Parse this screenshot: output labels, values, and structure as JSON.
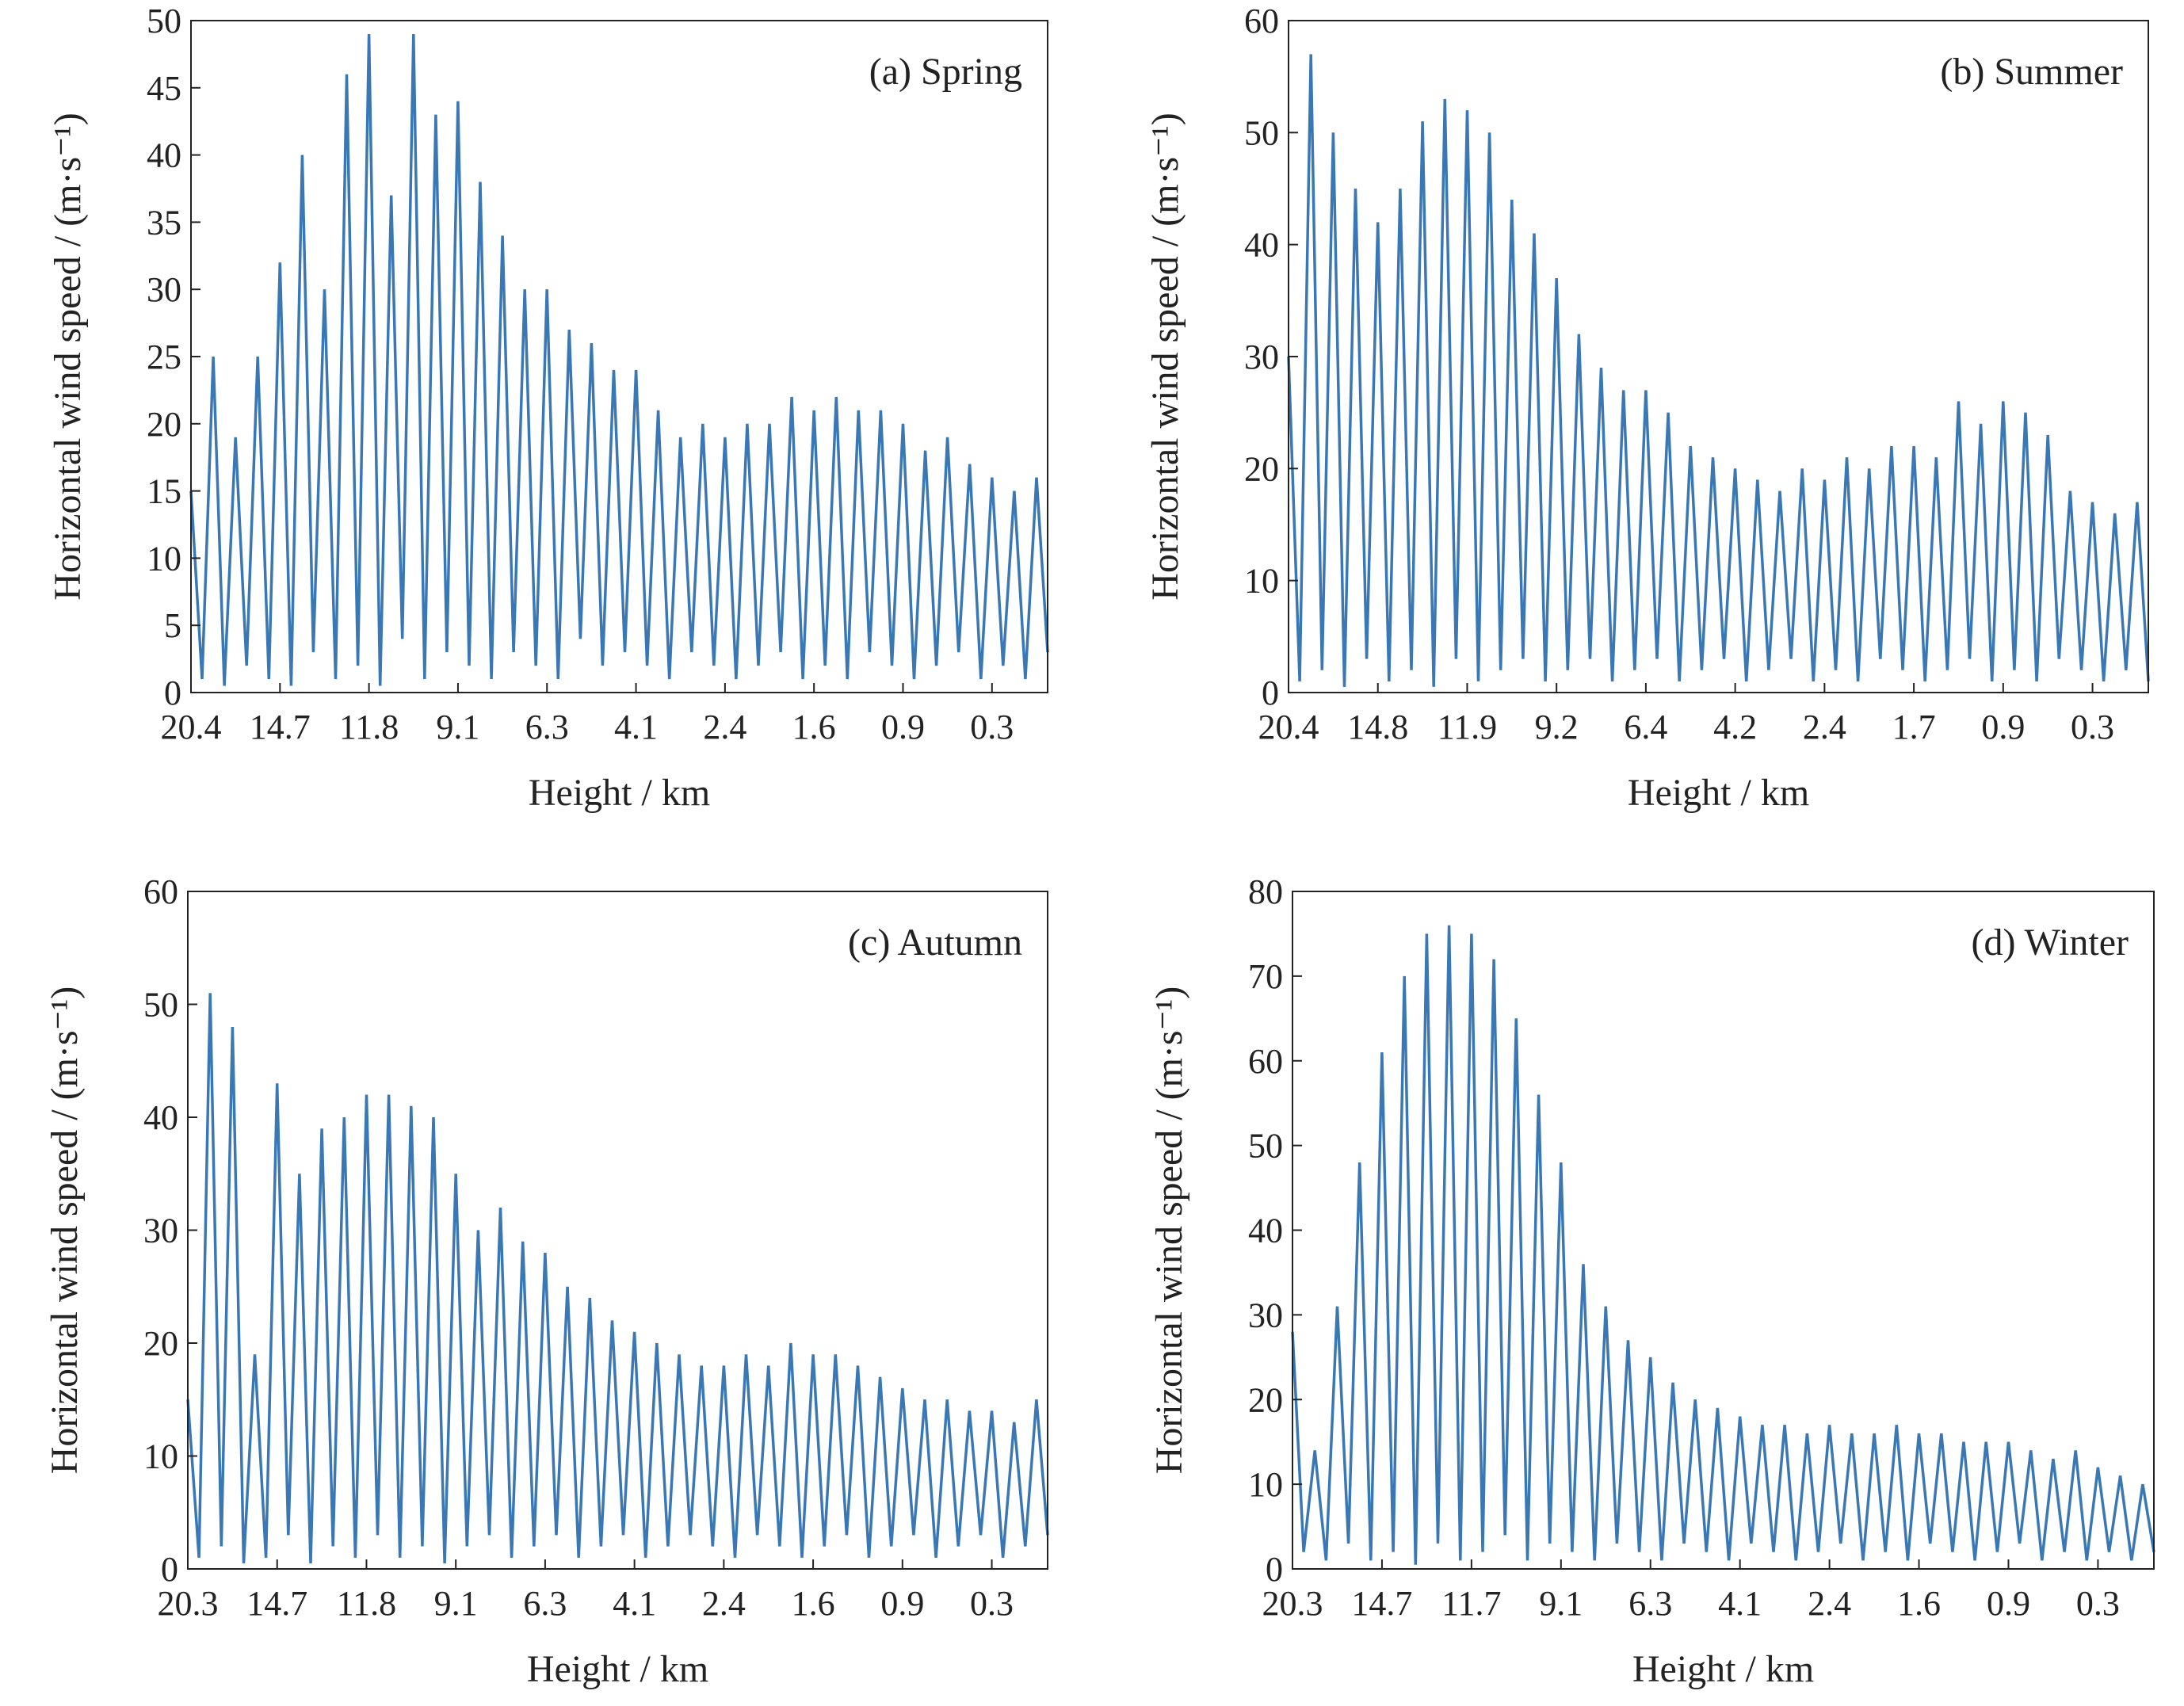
{
  "chart_data": [
    {
      "type": "line",
      "title": "(a) Spring",
      "xlabel": "Height / km",
      "ylabel": "Horizontal wind speed / (m·s⁻¹)",
      "categories": [
        "20.4",
        null,
        null,
        null,
        null,
        null,
        null,
        null,
        "14.7",
        null,
        null,
        null,
        null,
        null,
        null,
        null,
        "11.8",
        null,
        null,
        null,
        null,
        null,
        null,
        null,
        "9.1",
        null,
        null,
        null,
        null,
        null,
        null,
        null,
        "6.3",
        null,
        null,
        null,
        null,
        null,
        null,
        null,
        "4.1",
        null,
        null,
        null,
        null,
        null,
        null,
        null,
        "2.4",
        null,
        null,
        null,
        null,
        null,
        null,
        null,
        "1.6",
        null,
        null,
        null,
        null,
        null,
        null,
        null,
        "0.9",
        null,
        null,
        null,
        null,
        null,
        null,
        null,
        "0.3",
        null,
        null,
        null,
        null,
        null
      ],
      "series": [
        {
          "color": "#3a78b5",
          "values": [
            15,
            1,
            25,
            0.5,
            19,
            2,
            25,
            1,
            32,
            0.5,
            40,
            3,
            30,
            1,
            46,
            2,
            49,
            0.5,
            37,
            4,
            49,
            1,
            43,
            3,
            44,
            2,
            38,
            1,
            34,
            3,
            30,
            2,
            30,
            1,
            27,
            4,
            26,
            2,
            24,
            3,
            24,
            2,
            21,
            1,
            19,
            3,
            20,
            2,
            19,
            1,
            20,
            2,
            20,
            3,
            22,
            1,
            21,
            2,
            22,
            1,
            21,
            3,
            21,
            2,
            20,
            1,
            18,
            2,
            19,
            3,
            17,
            1,
            16,
            2,
            15,
            1,
            16,
            3
          ]
        }
      ],
      "ylim": [
        0,
        50
      ],
      "yticks": [
        0,
        5,
        10,
        15,
        20,
        25,
        30,
        35,
        40,
        45,
        50
      ]
    },
    {
      "type": "line",
      "title": "(b) Summer",
      "xlabel": "Height / km",
      "ylabel": "Horizontal wind speed / (m·s⁻¹)",
      "categories": [
        "20.4",
        null,
        null,
        null,
        null,
        null,
        null,
        null,
        "14.8",
        null,
        null,
        null,
        null,
        null,
        null,
        null,
        "11.9",
        null,
        null,
        null,
        null,
        null,
        null,
        null,
        "9.2",
        null,
        null,
        null,
        null,
        null,
        null,
        null,
        "6.4",
        null,
        null,
        null,
        null,
        null,
        null,
        null,
        "4.2",
        null,
        null,
        null,
        null,
        null,
        null,
        null,
        "2.4",
        null,
        null,
        null,
        null,
        null,
        null,
        null,
        "1.7",
        null,
        null,
        null,
        null,
        null,
        null,
        null,
        "0.9",
        null,
        null,
        null,
        null,
        null,
        null,
        null,
        "0.3",
        null,
        null,
        null,
        null,
        null
      ],
      "series": [
        {
          "color": "#3a78b5",
          "values": [
            30,
            1,
            57,
            2,
            50,
            0.5,
            45,
            3,
            42,
            1,
            45,
            2,
            51,
            0.5,
            53,
            3,
            52,
            1,
            50,
            2,
            44,
            3,
            41,
            1,
            37,
            2,
            32,
            3,
            29,
            1,
            27,
            2,
            27,
            3,
            25,
            1,
            22,
            2,
            21,
            3,
            20,
            1,
            19,
            2,
            18,
            3,
            20,
            1,
            19,
            2,
            21,
            1,
            20,
            3,
            22,
            2,
            22,
            1,
            21,
            2,
            26,
            3,
            24,
            1,
            26,
            2,
            25,
            1,
            23,
            3,
            18,
            2,
            17,
            1,
            16,
            2,
            17,
            1
          ]
        }
      ],
      "ylim": [
        0,
        60
      ],
      "yticks": [
        0,
        10,
        20,
        30,
        40,
        50,
        60
      ]
    },
    {
      "type": "line",
      "title": "(c) Autumn",
      "xlabel": "Height / km",
      "ylabel": "Horizontal wind speed / (m·s⁻¹)",
      "categories": [
        "20.3",
        null,
        null,
        null,
        null,
        null,
        null,
        null,
        "14.7",
        null,
        null,
        null,
        null,
        null,
        null,
        null,
        "11.8",
        null,
        null,
        null,
        null,
        null,
        null,
        null,
        "9.1",
        null,
        null,
        null,
        null,
        null,
        null,
        null,
        "6.3",
        null,
        null,
        null,
        null,
        null,
        null,
        null,
        "4.1",
        null,
        null,
        null,
        null,
        null,
        null,
        null,
        "2.4",
        null,
        null,
        null,
        null,
        null,
        null,
        null,
        "1.6",
        null,
        null,
        null,
        null,
        null,
        null,
        null,
        "0.9",
        null,
        null,
        null,
        null,
        null,
        null,
        null,
        "0.3",
        null,
        null,
        null,
        null,
        null
      ],
      "series": [
        {
          "color": "#3a78b5",
          "values": [
            15,
            1,
            51,
            2,
            48,
            0.5,
            19,
            1,
            43,
            3,
            35,
            0.5,
            39,
            2,
            40,
            1,
            42,
            3,
            42,
            1,
            41,
            2,
            40,
            0.5,
            35,
            2,
            30,
            3,
            32,
            1,
            29,
            2,
            28,
            3,
            25,
            1,
            24,
            2,
            22,
            3,
            21,
            1,
            20,
            2,
            19,
            3,
            18,
            2,
            18,
            1,
            19,
            3,
            18,
            2,
            20,
            1,
            19,
            2,
            19,
            3,
            18,
            1,
            17,
            2,
            16,
            3,
            15,
            1,
            15,
            2,
            14,
            3,
            14,
            1,
            13,
            2,
            15,
            3
          ]
        }
      ],
      "ylim": [
        0,
        60
      ],
      "yticks": [
        0,
        10,
        20,
        30,
        40,
        50,
        60
      ]
    },
    {
      "type": "line",
      "title": "(d) Winter",
      "xlabel": "Height / km",
      "ylabel": "Horizontal wind speed / (m·s⁻¹)",
      "categories": [
        "20.3",
        null,
        null,
        null,
        null,
        null,
        null,
        null,
        "14.7",
        null,
        null,
        null,
        null,
        null,
        null,
        null,
        "11.7",
        null,
        null,
        null,
        null,
        null,
        null,
        null,
        "9.1",
        null,
        null,
        null,
        null,
        null,
        null,
        null,
        "6.3",
        null,
        null,
        null,
        null,
        null,
        null,
        null,
        "4.1",
        null,
        null,
        null,
        null,
        null,
        null,
        null,
        "2.4",
        null,
        null,
        null,
        null,
        null,
        null,
        null,
        "1.6",
        null,
        null,
        null,
        null,
        null,
        null,
        null,
        "0.9",
        null,
        null,
        null,
        null,
        null,
        null,
        null,
        "0.3",
        null,
        null,
        null,
        null,
        null
      ],
      "series": [
        {
          "color": "#3a78b5",
          "values": [
            28,
            2,
            14,
            1,
            31,
            3,
            48,
            1,
            61,
            2,
            70,
            0.5,
            75,
            3,
            76,
            1,
            75,
            2,
            72,
            4,
            65,
            1,
            56,
            3,
            48,
            2,
            36,
            1,
            31,
            3,
            27,
            2,
            25,
            1,
            22,
            3,
            20,
            2,
            19,
            1,
            18,
            3,
            17,
            2,
            17,
            1,
            16,
            2,
            17,
            3,
            16,
            1,
            16,
            2,
            17,
            1,
            16,
            3,
            16,
            2,
            15,
            1,
            15,
            2,
            15,
            3,
            14,
            1,
            13,
            2,
            14,
            1,
            12,
            2,
            11,
            1,
            10,
            2
          ]
        }
      ],
      "ylim": [
        0,
        80
      ],
      "yticks": [
        0,
        10,
        20,
        30,
        40,
        50,
        60,
        70,
        80
      ]
    }
  ]
}
